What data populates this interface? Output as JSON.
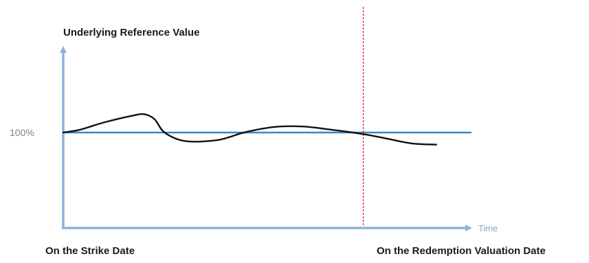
{
  "chart_data": {
    "type": "line",
    "ylabel": "Underlying Reference Value",
    "xlabel": "Time",
    "reference_label": "100%",
    "reference_value": 100,
    "ylim": [
      70,
      130
    ],
    "x_start_label": "On the Strike Date",
    "x_end_label": "On the Redemption Valuation Date",
    "x_marker": 0.74,
    "series": [
      {
        "x": [
          0.0,
          0.04,
          0.1,
          0.17,
          0.2,
          0.225,
          0.25,
          0.3,
          0.38,
          0.45,
          0.52,
          0.59,
          0.66,
          0.74,
          0.8,
          0.86,
          0.92
        ],
        "values": [
          100,
          101.2,
          104.5,
          107.5,
          108.2,
          106,
          100,
          96.2,
          96.6,
          100.2,
          102.5,
          102.7,
          101.3,
          99.3,
          97.2,
          95.1,
          94.6
        ]
      }
    ]
  },
  "colors": {
    "axis": "#8bb4d9",
    "reference_line": "#3c84c2",
    "series": "#111111",
    "marker": "#e21c27"
  }
}
